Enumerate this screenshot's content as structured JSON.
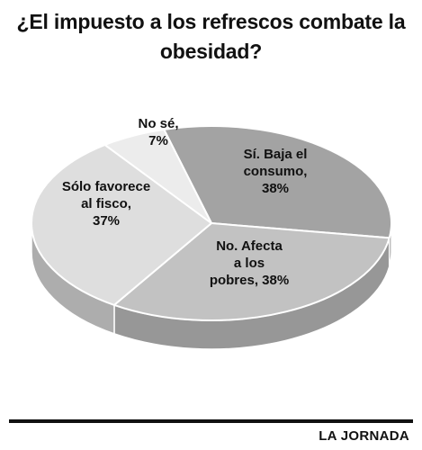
{
  "title": "¿El impuesto a los refrescos combate la obesidad?",
  "credit": "LA JORNADA",
  "chart_data": {
    "type": "pie",
    "title": "¿El impuesto a los refrescos combate la obesidad?",
    "slices": [
      {
        "label_lines": [
          "Sí. Baja el",
          "consumo,",
          "38%"
        ],
        "value": 38,
        "color": "#a3a3a3"
      },
      {
        "label_lines": [
          "No. Afecta",
          "a los",
          "pobres, 38%"
        ],
        "value": 38,
        "color": "#c2c2c2"
      },
      {
        "label_lines": [
          "Sólo favorece",
          "al fisco,",
          "37%"
        ],
        "value": 37,
        "color": "#dedede"
      },
      {
        "label_lines": [
          "No sé,",
          "7%"
        ],
        "value": 7,
        "color": "#ececec"
      }
    ],
    "legend": "none",
    "grid": false
  }
}
